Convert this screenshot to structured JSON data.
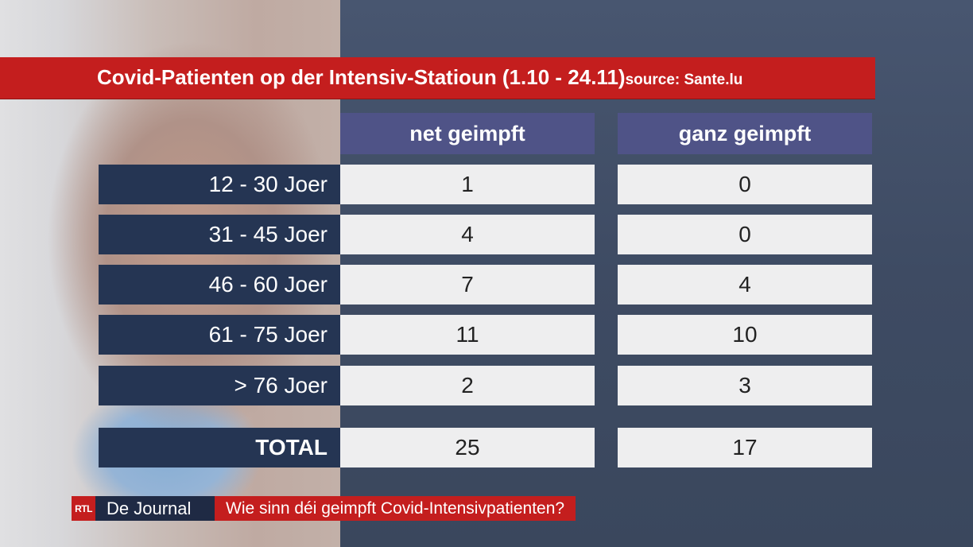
{
  "title": "Covid-Patienten op der Intensiv-Statioun (1.10 - 24.11)",
  "source": "source: Sante.lu",
  "chart_data": {
    "type": "table",
    "columns": [
      "net geimpft",
      "ganz geimpft"
    ],
    "rows": [
      {
        "label": "12 - 30 Joer",
        "values": [
          "1",
          "0"
        ]
      },
      {
        "label": "31 - 45 Joer",
        "values": [
          "4",
          "0"
        ]
      },
      {
        "label": "46 - 60 Joer",
        "values": [
          "7",
          "4"
        ]
      },
      {
        "label": "61 - 75 Joer",
        "values": [
          "11",
          "10"
        ]
      },
      {
        "label": "> 76 Joer",
        "values": [
          "2",
          "3"
        ]
      }
    ],
    "total": {
      "label": "TOTAL",
      "values": [
        "25",
        "17"
      ]
    }
  },
  "footer": {
    "logo": "RTL",
    "show": "De Journal",
    "headline": "Wie sinn déi geimpft Covid-Intensivpatienten?"
  },
  "colors": {
    "accent_red": "#c41e1e",
    "header_purple": "#4f5387",
    "label_navy": "#253553",
    "cell_bg": "#eeeeef"
  }
}
